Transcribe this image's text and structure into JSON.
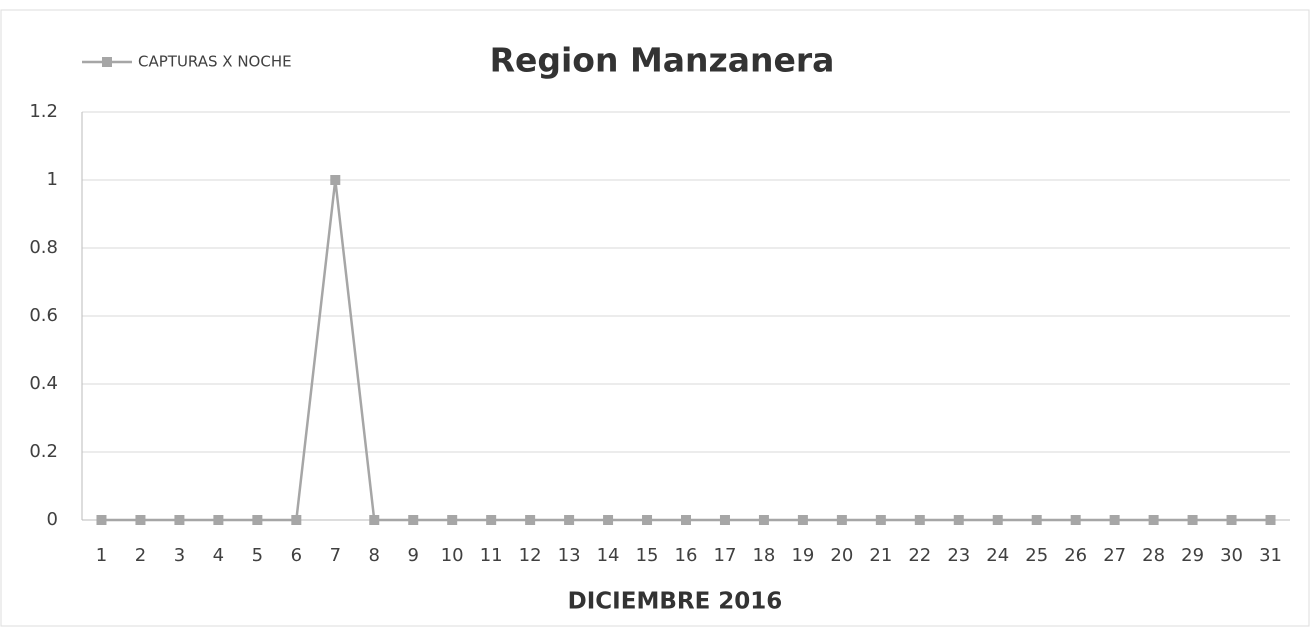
{
  "chart_data": {
    "type": "line",
    "title": "Region Manzanera",
    "x_label": "DICIEMBRE 2016",
    "categories": [
      "1",
      "2",
      "3",
      "4",
      "5",
      "6",
      "7",
      "8",
      "9",
      "10",
      "11",
      "12",
      "13",
      "14",
      "15",
      "16",
      "17",
      "18",
      "19",
      "20",
      "21",
      "22",
      "23",
      "24",
      "25",
      "26",
      "27",
      "28",
      "29",
      "30",
      "31"
    ],
    "series": [
      {
        "name": "CAPTURAS X NOCHE",
        "color": "#a6a6a6",
        "values": [
          0,
          0,
          0,
          0,
          0,
          0,
          1,
          0,
          0,
          0,
          0,
          0,
          0,
          0,
          0,
          0,
          0,
          0,
          0,
          0,
          0,
          0,
          0,
          0,
          0,
          0,
          0,
          0,
          0,
          0,
          0
        ]
      }
    ],
    "ylim": [
      0,
      1.2
    ],
    "yticks": [
      0,
      0.2,
      0.4,
      0.6,
      0.8,
      1,
      1.2
    ],
    "grid": true,
    "legend": "top-left"
  }
}
